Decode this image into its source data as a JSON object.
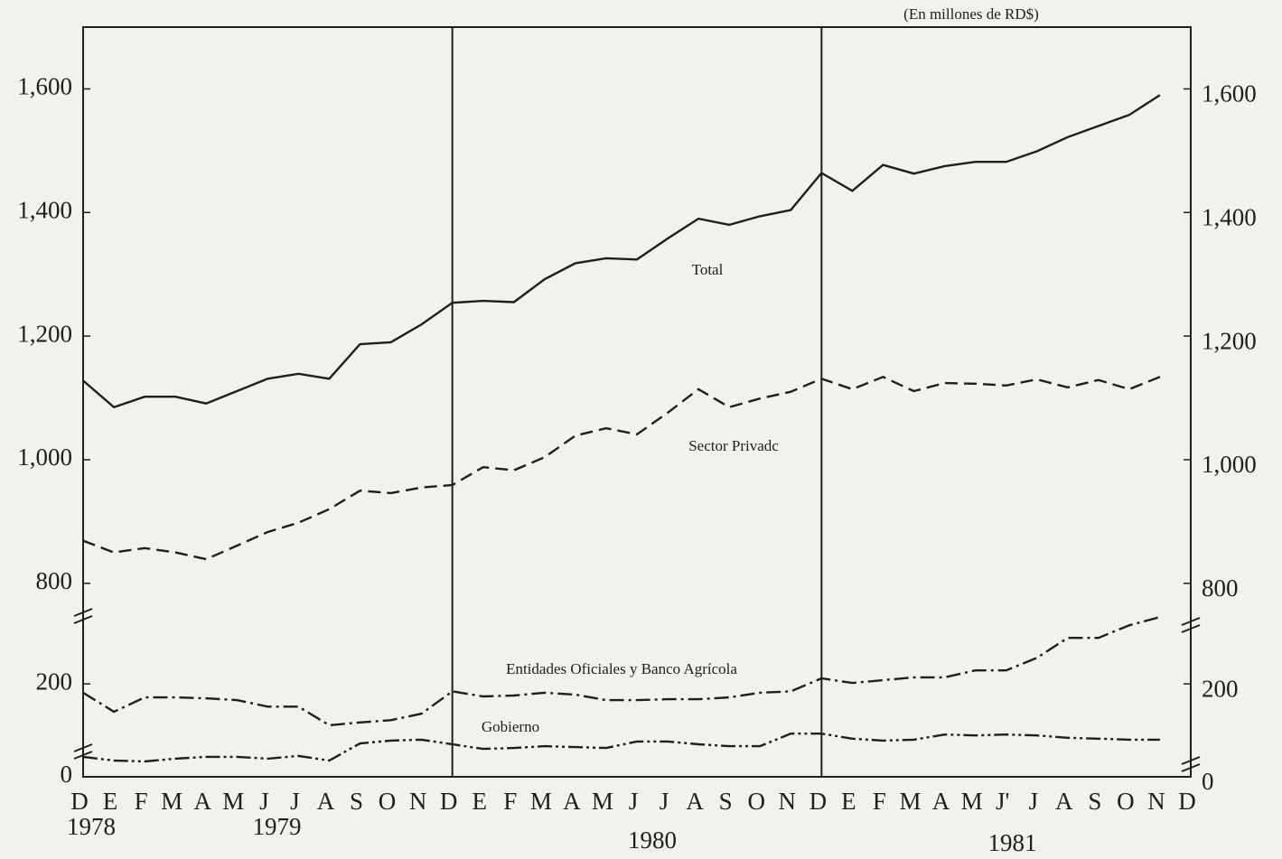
{
  "chart_data": [
    {
      "type": "line",
      "unit_note": "(En millones de RD$)",
      "categories": [
        "D",
        "E",
        "F",
        "M",
        "A",
        "M",
        "J",
        "J",
        "A",
        "S",
        "O",
        "N",
        "D",
        "E",
        "F",
        "M",
        "A",
        "M",
        "J",
        "J",
        "A",
        "S",
        "O",
        "N",
        "D",
        "E",
        "F",
        "M",
        "A",
        "M",
        "J'",
        "J",
        "A",
        "S",
        "O",
        "N",
        "D"
      ],
      "ylim": [
        750,
        1700
      ],
      "yticks": [
        800,
        {
          "value": 1000,
          "label": "1,000"
        },
        {
          "value": 1200,
          "label": "1,200"
        },
        {
          "value": 1400,
          "label": "1,400"
        },
        {
          "value": 1600,
          "label": "1,600"
        }
      ],
      "series": [
        {
          "name": "Total",
          "color": "#1e1e1e",
          "style": "solid",
          "values": [
            1128,
            1085,
            1102,
            1102,
            1091,
            1111,
            1131,
            1139,
            1131,
            1187,
            1190,
            1219,
            1254,
            1257,
            1255,
            1292,
            1318,
            1326,
            1324,
            1358,
            1390,
            1380,
            1394,
            1404,
            1464,
            1435,
            1477,
            1463,
            1475,
            1482,
            1482,
            1499,
            1522,
            1540,
            1558,
            1590,
            null
          ]
        },
        {
          "name": "Sector Privadc",
          "color": "#1e1e1e",
          "style": "dashed",
          "values": [
            869,
            850,
            857,
            850,
            839,
            861,
            883,
            898,
            920,
            950,
            946,
            955,
            959,
            988,
            983,
            1004,
            1039,
            1051,
            1041,
            1076,
            1114,
            1085,
            1099,
            1110,
            1131,
            1114,
            1134,
            1111,
            1124,
            1123,
            1120,
            1130,
            1117,
            1129,
            1114,
            1134,
            null
          ]
        }
      ]
    },
    {
      "type": "line",
      "categories": [
        "D",
        "E",
        "F",
        "M",
        "A",
        "M",
        "J",
        "J",
        "A",
        "S",
        "O",
        "N",
        "D",
        "E",
        "F",
        "M",
        "A",
        "M",
        "J",
        "J",
        "A",
        "S",
        "O",
        "N",
        "D",
        "E",
        "F",
        "M",
        "A",
        "M",
        "J'",
        "J",
        "A",
        "S",
        "O",
        "N",
        "D"
      ],
      "years": [
        "1978",
        "1979",
        "1980",
        "1981"
      ],
      "ylim": [
        0,
        350
      ],
      "yticks": [
        0,
        200
      ],
      "series": [
        {
          "name": "Entidades Oficiales y Banco Agrícola",
          "color": "#1e1e1e",
          "style": "dashdot",
          "values": [
            181,
            140,
            171,
            171,
            169,
            165,
            151,
            151,
            111,
            117,
            122,
            136,
            184,
            173,
            175,
            181,
            177,
            165,
            165,
            167,
            167,
            171,
            181,
            184,
            212,
            202,
            208,
            214,
            214,
            229,
            229,
            256,
            299,
            299,
            326,
            344,
            null
          ]
        },
        {
          "name": "Gobierno",
          "color": "#1e1e1e",
          "style": "dashdotdot",
          "values": [
            43,
            35,
            33,
            39,
            43,
            43,
            39,
            45,
            35,
            72,
            78,
            80,
            70,
            60,
            62,
            66,
            64,
            62,
            76,
            76,
            70,
            66,
            66,
            93,
            93,
            82,
            78,
            80,
            91,
            89,
            91,
            89,
            84,
            82,
            80,
            80,
            null
          ]
        }
      ]
    }
  ]
}
